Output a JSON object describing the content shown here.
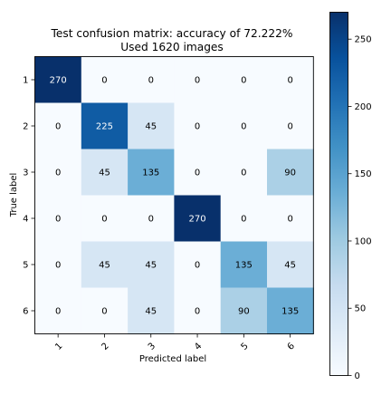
{
  "chart_data": {
    "type": "heatmap",
    "title": "Test confusion matrix: accuracy of 72.222%",
    "subtitle": "Used 1620 images",
    "xlabel": "Predicted label",
    "ylabel": "True label",
    "x_categories": [
      "1",
      "2",
      "3",
      "4",
      "5",
      "6"
    ],
    "y_categories": [
      "1",
      "2",
      "3",
      "4",
      "5",
      "6"
    ],
    "matrix": [
      [
        270,
        0,
        0,
        0,
        0,
        0
      ],
      [
        0,
        225,
        45,
        0,
        0,
        0
      ],
      [
        0,
        45,
        135,
        0,
        0,
        90
      ],
      [
        0,
        0,
        0,
        270,
        0,
        0
      ],
      [
        0,
        45,
        45,
        0,
        135,
        45
      ],
      [
        0,
        0,
        45,
        0,
        90,
        135
      ]
    ],
    "colorbar": {
      "colormap": "Blues",
      "range": [
        0,
        270
      ],
      "ticks": [
        0,
        50,
        100,
        150,
        200,
        250
      ]
    },
    "x_tick_rotation": "45 degrees",
    "grid": false,
    "legend": "colorbar right"
  }
}
